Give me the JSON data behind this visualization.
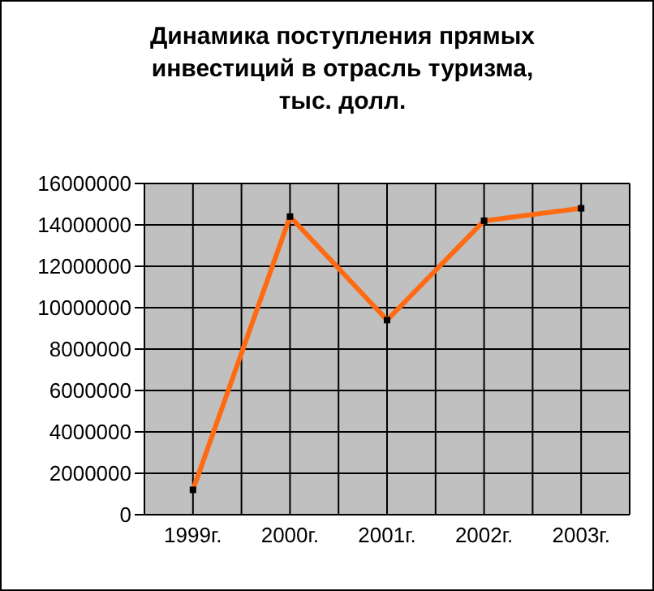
{
  "chart_data": {
    "type": "line",
    "title": "Динамика поступления прямых инвестиций в отрасль туризма, тыс. долл.",
    "categories": [
      "1999г.",
      "2000г.",
      "2001г.",
      "2002г.",
      "2003г."
    ],
    "series": [
      {
        "color": "#ff6a13",
        "values": [
          1200000,
          14400000,
          9400000,
          14200000,
          14800000
        ]
      }
    ],
    "ylim": [
      0,
      16000000
    ],
    "yticks": [
      0,
      2000000,
      4000000,
      6000000,
      8000000,
      10000000,
      12000000,
      14000000,
      16000000
    ],
    "grid": true,
    "legend": false,
    "marker": "square",
    "line_style": "solid"
  }
}
